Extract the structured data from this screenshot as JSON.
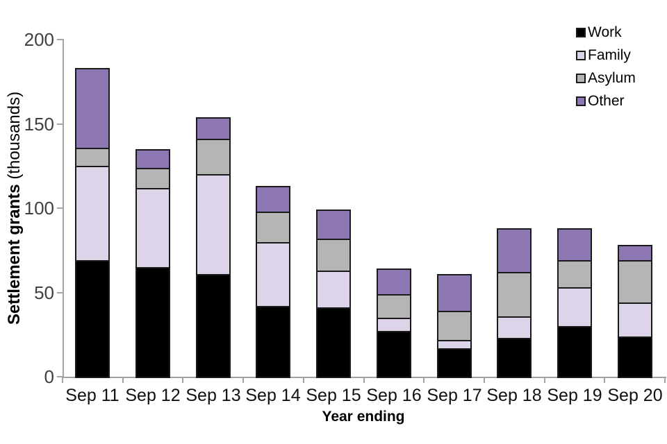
{
  "chart_data": {
    "type": "bar",
    "stacked": true,
    "categories": [
      "Sep 11",
      "Sep 12",
      "Sep 13",
      "Sep 14",
      "Sep 15",
      "Sep 16",
      "Sep 17",
      "Sep 18",
      "Sep 19",
      "Sep 20"
    ],
    "series": [
      {
        "name": "Work",
        "color": "#000000",
        "values": [
          69,
          65,
          61,
          42,
          41,
          27,
          17,
          23,
          30,
          24
        ]
      },
      {
        "name": "Family",
        "color": "#ddd4e9",
        "values": [
          56,
          47,
          59,
          38,
          22,
          8,
          5,
          13,
          23,
          20
        ]
      },
      {
        "name": "Asylum",
        "color": "#b5b5b5",
        "values": [
          11,
          12,
          21,
          18,
          19,
          14,
          17,
          26,
          16,
          25
        ]
      },
      {
        "name": "Other",
        "color": "#8d77b3",
        "values": [
          47,
          11,
          13,
          15,
          17,
          15,
          22,
          26,
          19,
          9
        ]
      }
    ],
    "totals": [
      183,
      135,
      154,
      113,
      99,
      64,
      61,
      88,
      88,
      78
    ],
    "xlabel": "Year ending",
    "ylabel_bold": "Settlement grants",
    "ylabel_normal": "(thousands)",
    "ylim": [
      0,
      200
    ],
    "yticks": [
      0,
      50,
      100,
      150,
      200
    ],
    "grid": false,
    "legend_position": "top-right"
  },
  "colors": {
    "axis": "#a3a3a3",
    "y_tick_label": "#3f3f3f",
    "x_tick_label": "#111111",
    "bar_border": "#1a1a1a",
    "background": "#ffffff"
  }
}
